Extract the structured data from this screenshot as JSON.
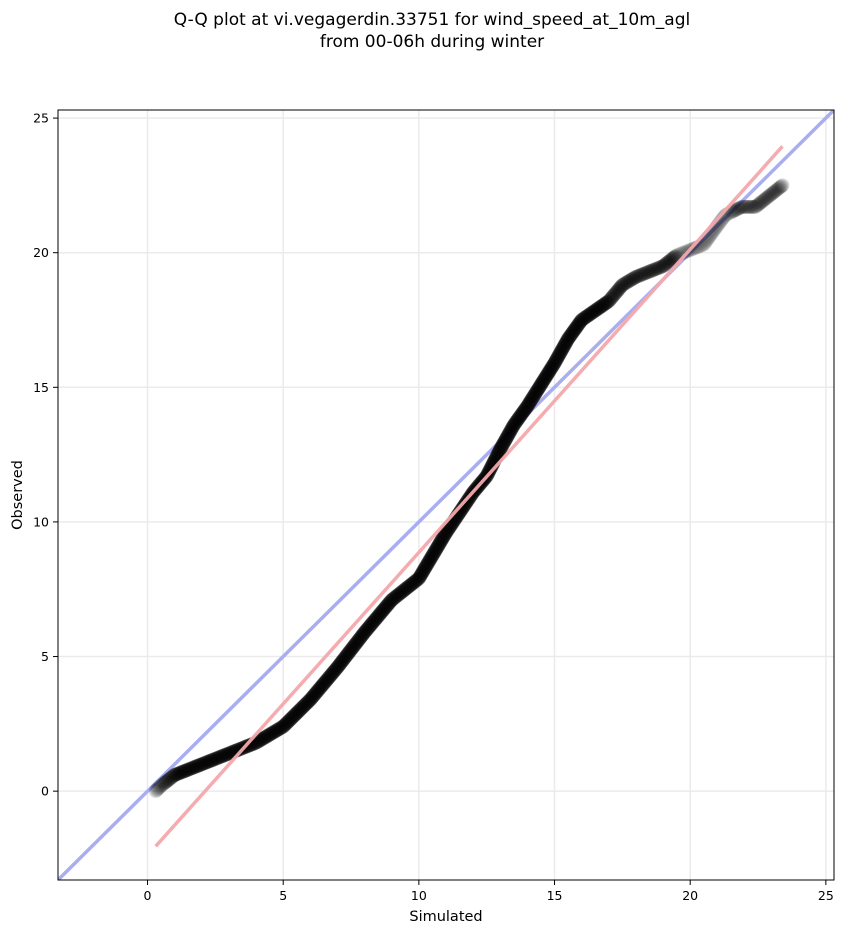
{
  "chart_data": {
    "type": "scatter",
    "title_lines": [
      "Q-Q plot at vi.vegagerdin.33751 for wind_speed_at_10m_agl",
      "from 00-06h during winter"
    ],
    "xlabel": "Simulated",
    "ylabel": "Observed",
    "xlim": [
      -3.3,
      25.3
    ],
    "ylim": [
      -3.3,
      25.3
    ],
    "xticks": [
      0,
      5,
      10,
      15,
      20,
      25
    ],
    "yticks": [
      0,
      5,
      10,
      15,
      20,
      25
    ],
    "grid": true,
    "colors": {
      "points": "#000000",
      "identity_line": "#a8aef0",
      "fit_line": "#f4a8ac",
      "grid": "#ebebeb"
    },
    "identity_line": {
      "x": [
        -3.3,
        25.3
      ],
      "y": [
        -3.3,
        25.3
      ]
    },
    "fit_line": {
      "x": [
        0.3,
        23.4
      ],
      "y": [
        -2.05,
        23.95
      ]
    },
    "quantiles": {
      "x": [
        0.3,
        0.5,
        1,
        2,
        3,
        4,
        5,
        6,
        7,
        8,
        9,
        10,
        11,
        12,
        12.5,
        13,
        13.5,
        14,
        14.5,
        15,
        15.5,
        16,
        17,
        17.5,
        18,
        19,
        19.5,
        20,
        20.5,
        21,
        21.3,
        21.9,
        22.4,
        23.4
      ],
      "y": [
        0,
        0.2,
        0.6,
        1,
        1.4,
        1.8,
        2.4,
        3.4,
        4.6,
        5.9,
        7.1,
        7.9,
        9.6,
        11.1,
        11.7,
        12.7,
        13.6,
        14.3,
        15.1,
        15.9,
        16.8,
        17.5,
        18.2,
        18.8,
        19.1,
        19.5,
        19.9,
        20.1,
        20.3,
        21.0,
        21.4,
        21.7,
        21.7,
        22.5
      ]
    }
  }
}
